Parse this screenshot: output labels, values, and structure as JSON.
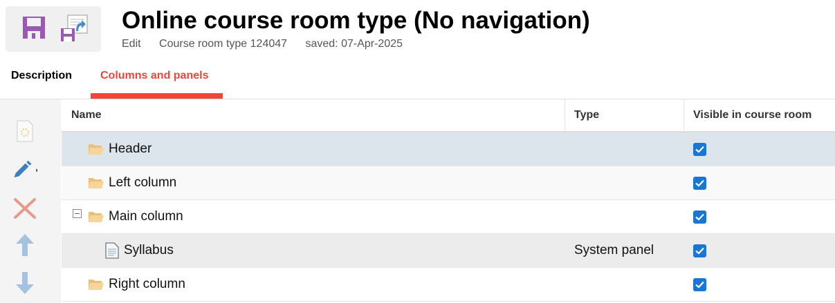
{
  "header": {
    "title": "Online course room type (No navigation)",
    "mode": "Edit",
    "record": "Course room type 124047",
    "saved": "saved: 07-Apr-2025"
  },
  "tabs": [
    {
      "label": "Description",
      "active": false
    },
    {
      "label": "Columns and panels",
      "active": true
    }
  ],
  "colors": {
    "accent": "#f44336",
    "selected_row": "#dde5ec",
    "save_icon": "#9b59b6"
  },
  "table": {
    "columns": [
      "Name",
      "Type",
      "Visible in course room"
    ],
    "rows": [
      {
        "name": "Header",
        "type": "",
        "visible": true,
        "icon": "folder-icon",
        "level": 0,
        "selected": true
      },
      {
        "name": "Left column",
        "type": "",
        "visible": true,
        "icon": "folder-icon",
        "level": 0
      },
      {
        "name": "Main column",
        "type": "",
        "visible": true,
        "icon": "folder-icon",
        "level": 0,
        "expanded": true
      },
      {
        "name": "Syllabus",
        "type": "System panel",
        "visible": true,
        "icon": "document-icon",
        "level": 1
      },
      {
        "name": "Right column",
        "type": "",
        "visible": true,
        "icon": "folder-icon",
        "level": 0
      }
    ]
  }
}
